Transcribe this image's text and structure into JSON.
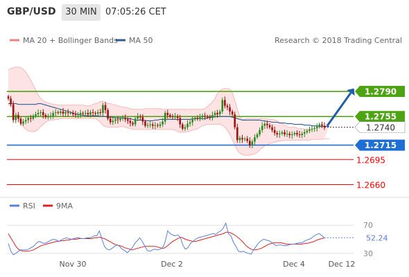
{
  "header": {
    "symbol": "GBP/USD",
    "timeframe": "30 MIN",
    "time": "07:05:26 CET"
  },
  "legend": {
    "bollinger_label": "MA 20 + Bollinger Bands",
    "ma50_label": "MA 50",
    "credit": "Research © 2018 Trading Central",
    "bollinger_color": "#f08080",
    "ma50_color": "#2f5b94"
  },
  "rsi_legend": {
    "rsi_label": "RSI",
    "ma_label": "9MA",
    "rsi_color": "#5b7fdc",
    "ma_color": "#e02020"
  },
  "chart_data": [
    {
      "type": "candlestick",
      "ylim": [
        1.2645,
        1.285
      ],
      "x_labels": [
        "Nov 30",
        "Dec 2",
        "Dec 4",
        "Dec 12"
      ],
      "levels": [
        {
          "value": "1.2790",
          "kind": "resistance",
          "color": "#4da312"
        },
        {
          "value": "1.2755",
          "kind": "resistance",
          "color": "#4da312"
        },
        {
          "value": "1.2740",
          "kind": "last",
          "color": "#ffffff"
        },
        {
          "value": "1.2715",
          "kind": "pivot",
          "color": "#1d6fd6"
        },
        {
          "value": "1.2695",
          "kind": "support",
          "color": "#ff0000"
        },
        {
          "value": "1.2660",
          "kind": "support",
          "color": "#ff0000"
        }
      ],
      "close": [
        1.278,
        1.2772,
        1.275,
        1.2757,
        1.2752,
        1.2745,
        1.2748,
        1.275,
        1.2753,
        1.2752,
        1.2756,
        1.2758,
        1.276,
        1.2761,
        1.2757,
        1.2754,
        1.2755,
        1.2756,
        1.276,
        1.2761,
        1.276,
        1.2762,
        1.2759,
        1.2761,
        1.276,
        1.276,
        1.2758,
        1.2757,
        1.2758,
        1.276,
        1.2759,
        1.276,
        1.2758,
        1.2761,
        1.276,
        1.2759,
        1.2761,
        1.276,
        1.2771,
        1.2764,
        1.2752,
        1.2747,
        1.2749,
        1.2751,
        1.275,
        1.2752,
        1.2753,
        1.2751,
        1.2749,
        1.2746,
        1.2744,
        1.2752,
        1.2755,
        1.2754,
        1.2748,
        1.2742,
        1.2743,
        1.2744,
        1.2742,
        1.2743,
        1.2742,
        1.2744,
        1.2748,
        1.276,
        1.2757,
        1.2755,
        1.2754,
        1.2755,
        1.2753,
        1.2744,
        1.2738,
        1.274,
        1.2745,
        1.2747,
        1.2751,
        1.2753,
        1.2752,
        1.2754,
        1.2756,
        1.2755,
        1.2754,
        1.2753,
        1.2757,
        1.276,
        1.2758,
        1.2762,
        1.2778,
        1.277,
        1.2768,
        1.2762,
        1.2758,
        1.274,
        1.2722,
        1.2725,
        1.2723,
        1.2724,
        1.2721,
        1.2715,
        1.272,
        1.2726,
        1.273,
        1.2736,
        1.2742,
        1.2745,
        1.2743,
        1.274,
        1.2736,
        1.2732,
        1.273,
        1.2731,
        1.2733,
        1.273,
        1.2731,
        1.2729,
        1.273,
        1.2732,
        1.273,
        1.2729,
        1.2731,
        1.2733,
        1.2735,
        1.2737,
        1.2738,
        1.2739,
        1.2741,
        1.2744,
        1.2742,
        1.274
      ],
      "ma50": [
        1.2773,
        1.2773,
        1.2773,
        1.2773,
        1.2772,
        1.2772,
        1.2772,
        1.2772,
        1.2772,
        1.2772,
        1.2772,
        1.2772,
        1.2773,
        1.2773,
        1.2772,
        1.2771,
        1.277,
        1.2769,
        1.2768,
        1.2767,
        1.2766,
        1.2765,
        1.2764,
        1.2763,
        1.2762,
        1.2761,
        1.276,
        1.2759,
        1.2758,
        1.2757,
        1.2757,
        1.2756,
        1.2756,
        1.2756,
        1.2756,
        1.2756,
        1.2756,
        1.2755,
        1.2755,
        1.2755,
        1.2754,
        1.2754,
        1.2754,
        1.2753,
        1.2753,
        1.2753,
        1.2753,
        1.2753,
        1.2752,
        1.2752,
        1.2751,
        1.275,
        1.275,
        1.275,
        1.275,
        1.2749,
        1.2749,
        1.2749,
        1.2749,
        1.275,
        1.275,
        1.2751,
        1.2751,
        1.2751,
        1.2751,
        1.2751,
        1.2751,
        1.2751,
        1.2751,
        1.2751,
        1.2751,
        1.2751,
        1.2751,
        1.2751,
        1.2752,
        1.2752,
        1.2752,
        1.2752,
        1.2752,
        1.2752,
        1.2753,
        1.2754,
        1.2754,
        1.2755,
        1.2755,
        1.2755,
        1.2755,
        1.2755,
        1.2755,
        1.2755,
        1.2754,
        1.2753,
        1.2752,
        1.2751,
        1.275,
        1.275,
        1.275,
        1.275,
        1.275,
        1.275,
        1.275,
        1.275,
        1.2749,
        1.2749,
        1.2748,
        1.2748,
        1.2747,
        1.2747,
        1.2747,
        1.2746,
        1.2746,
        1.2746,
        1.2745,
        1.2745,
        1.2745,
        1.2744,
        1.2744,
        1.2744,
        1.2744,
        1.2743,
        1.2743,
        1.2743,
        1.2742,
        1.2742,
        1.2742,
        1.2741,
        1.2741,
        1.2741,
        1.2741,
        1.2741
      ],
      "bb_upper": [
        1.282,
        1.2822,
        1.2823,
        1.2824,
        1.2824,
        1.2823,
        1.2821,
        1.2817,
        1.2812,
        1.2806,
        1.2799,
        1.2792,
        1.2785,
        1.278,
        1.2777,
        1.2775,
        1.2774,
        1.2773,
        1.2772,
        1.2772,
        1.2771,
        1.2771,
        1.2771,
        1.2771,
        1.2771,
        1.2771,
        1.2771,
        1.2771,
        1.2771,
        1.2771,
        1.2771,
        1.277,
        1.277,
        1.277,
        1.2772,
        1.2773,
        1.2774,
        1.2776,
        1.2776,
        1.2775,
        1.2773,
        1.2773,
        1.2772,
        1.2771,
        1.277,
        1.2769,
        1.2768,
        1.2768,
        1.2767,
        1.2766,
        1.2765,
        1.2765,
        1.2765,
        1.2765,
        1.2765,
        1.2766,
        1.2766,
        1.2766,
        1.2766,
        1.2766,
        1.2766,
        1.2766,
        1.2765,
        1.2765,
        1.2765,
        1.2765,
        1.2765,
        1.2765,
        1.2765,
        1.2765,
        1.2765,
        1.2765,
        1.2765,
        1.2765,
        1.2765,
        1.2765,
        1.2765,
        1.2765,
        1.2765,
        1.2766,
        1.2769,
        1.2772,
        1.2775,
        1.278,
        1.2787,
        1.2791,
        1.2793,
        1.2794,
        1.2794,
        1.2793,
        1.2788,
        1.2778,
        1.2765,
        1.2755,
        1.2751,
        1.2751,
        1.2752,
        1.2752,
        1.2752,
        1.2752,
        1.2752,
        1.2752,
        1.2752,
        1.2752,
        1.2751,
        1.2751,
        1.2751,
        1.275,
        1.2749,
        1.2747,
        1.2745,
        1.2743,
        1.2741,
        1.274,
        1.274,
        1.274,
        1.2739,
        1.2738,
        1.2738,
        1.2737,
        1.2737,
        1.2737,
        1.2737,
        1.2738,
        1.2738,
        1.274,
        1.2741,
        1.2742,
        1.2743,
        1.2744
      ],
      "bb_lower": [
        1.2771,
        1.277,
        1.2766,
        1.276,
        1.2754,
        1.2747,
        1.2741,
        1.2737,
        1.2735,
        1.2734,
        1.2734,
        1.2735,
        1.2737,
        1.2741,
        1.2744,
        1.2747,
        1.2749,
        1.275,
        1.275,
        1.2751,
        1.2751,
        1.2752,
        1.2752,
        1.2752,
        1.2752,
        1.2752,
        1.2752,
        1.2752,
        1.2752,
        1.2752,
        1.2752,
        1.2752,
        1.2752,
        1.2752,
        1.2752,
        1.2752,
        1.275,
        1.2747,
        1.2743,
        1.2741,
        1.274,
        1.274,
        1.274,
        1.274,
        1.274,
        1.2741,
        1.2741,
        1.274,
        1.2739,
        1.2738,
        1.2737,
        1.2737,
        1.2737,
        1.2737,
        1.2737,
        1.2737,
        1.2737,
        1.2737,
        1.2737,
        1.2737,
        1.2737,
        1.2737,
        1.2737,
        1.2737,
        1.2737,
        1.2737,
        1.2737,
        1.2736,
        1.2734,
        1.2733,
        1.2733,
        1.2733,
        1.2734,
        1.2735,
        1.2736,
        1.2737,
        1.2738,
        1.274,
        1.2742,
        1.2743,
        1.2744,
        1.2744,
        1.2744,
        1.2744,
        1.2744,
        1.2744,
        1.2743,
        1.274,
        1.2736,
        1.273,
        1.2723,
        1.2715,
        1.2708,
        1.2704,
        1.2702,
        1.2701,
        1.2701,
        1.2701,
        1.2702,
        1.2703,
        1.2705,
        1.2708,
        1.2711,
        1.2714,
        1.2716,
        1.2717,
        1.2718,
        1.2719,
        1.272,
        1.2721,
        1.2721,
        1.2722,
        1.2722,
        1.2722,
        1.2722,
        1.2722,
        1.2722,
        1.2722,
        1.2722,
        1.2722,
        1.2722,
        1.2722,
        1.2723,
        1.2723,
        1.2723,
        1.2723,
        1.2723,
        1.2724,
        1.2724,
        1.2724
      ]
    },
    {
      "type": "line",
      "title": "RSI",
      "ylim": [
        20,
        85
      ],
      "y_ticks": [
        "70",
        "30"
      ],
      "last_value": "52.24",
      "rsi": [
        44,
        33,
        28,
        30,
        33,
        35,
        35,
        35,
        36,
        38,
        40,
        44,
        47,
        46,
        44,
        45,
        47,
        49,
        50,
        49,
        47,
        49,
        51,
        52,
        51,
        50,
        51,
        52,
        52,
        51,
        51,
        52,
        52,
        53,
        55,
        55,
        62,
        50,
        40,
        36,
        35,
        37,
        40,
        42,
        40,
        36,
        34,
        31,
        34,
        38,
        44,
        48,
        52,
        47,
        40,
        34,
        33,
        35,
        36,
        35,
        36,
        38,
        46,
        62,
        58,
        56,
        55,
        56,
        53,
        42,
        36,
        38,
        44,
        47,
        50,
        52,
        53,
        54,
        55,
        56,
        57,
        58,
        57,
        60,
        62,
        66,
        73,
        58,
        55,
        46,
        40,
        33,
        32,
        33,
        31,
        30,
        29,
        35,
        40,
        45,
        48,
        50,
        49,
        48,
        46,
        43,
        41,
        42,
        42,
        41,
        41,
        42,
        43,
        43,
        44,
        45,
        45,
        47,
        49,
        50,
        52,
        55,
        57,
        58,
        55,
        52
      ],
      "ma9": [
        58,
        52,
        46,
        40,
        36,
        34,
        33,
        33,
        33,
        34,
        35,
        37,
        39,
        41,
        42,
        43,
        44,
        45,
        46,
        47,
        47,
        48,
        48,
        49,
        49,
        50,
        50,
        50,
        51,
        51,
        51,
        51,
        51,
        51,
        52,
        52,
        53,
        52,
        51,
        49,
        47,
        45,
        43,
        42,
        41,
        40,
        38,
        37,
        36,
        35,
        36,
        37,
        38,
        39,
        40,
        40,
        40,
        40,
        40,
        39,
        38,
        37,
        38,
        41,
        44,
        47,
        49,
        51,
        53,
        52,
        50,
        49,
        48,
        47,
        47,
        48,
        49,
        50,
        51,
        52,
        53,
        54,
        55,
        56,
        57,
        58,
        60,
        60,
        59,
        57,
        55,
        52,
        49,
        45,
        41,
        38,
        36,
        35,
        35,
        36,
        37,
        39,
        41,
        43,
        44,
        45,
        45,
        45,
        45,
        44,
        43,
        43,
        43,
        43,
        43,
        43,
        43,
        44,
        44,
        45,
        46,
        47,
        49,
        50,
        51,
        52
      ]
    }
  ]
}
